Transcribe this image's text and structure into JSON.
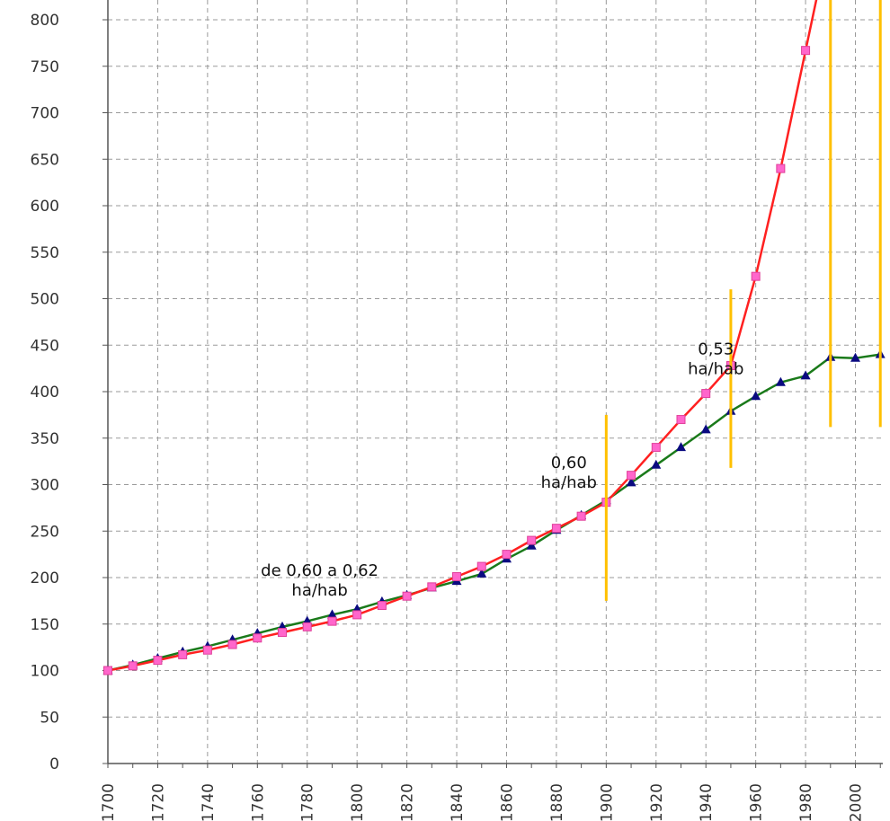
{
  "chart_data": {
    "type": "line",
    "title": "",
    "xlabel": "",
    "ylabel": "",
    "xlim": [
      1700,
      2011
    ],
    "ylim": [
      0,
      830
    ],
    "x_ticks": [
      1700,
      1720,
      1740,
      1760,
      1780,
      1800,
      1820,
      1840,
      1860,
      1880,
      1900,
      1920,
      1940,
      1960,
      1980,
      2000
    ],
    "y_ticks": [
      0,
      50,
      100,
      150,
      200,
      250,
      300,
      350,
      400,
      450,
      500,
      550,
      600,
      650,
      700,
      750,
      800
    ],
    "grid": true,
    "series": [
      {
        "color": "#ff2020",
        "marker": "square",
        "marker_color": "#ff66cc",
        "points": [
          [
            1700,
            100
          ],
          [
            1710,
            105
          ],
          [
            1720,
            111
          ],
          [
            1730,
            117
          ],
          [
            1740,
            122
          ],
          [
            1750,
            128
          ],
          [
            1760,
            135
          ],
          [
            1770,
            141
          ],
          [
            1780,
            147
          ],
          [
            1790,
            153
          ],
          [
            1800,
            160
          ],
          [
            1810,
            170
          ],
          [
            1820,
            180
          ],
          [
            1830,
            190
          ],
          [
            1840,
            201
          ],
          [
            1850,
            212
          ],
          [
            1860,
            225
          ],
          [
            1870,
            240
          ],
          [
            1880,
            253
          ],
          [
            1890,
            266
          ],
          [
            1900,
            281
          ],
          [
            1910,
            310
          ],
          [
            1920,
            340
          ],
          [
            1930,
            370
          ],
          [
            1940,
            398
          ],
          [
            1950,
            428
          ],
          [
            1960,
            524
          ],
          [
            1970,
            640
          ],
          [
            1980,
            767
          ],
          [
            1985,
            830
          ]
        ]
      },
      {
        "color": "#1a7a1a",
        "marker": "triangle",
        "marker_color": "#0a0a80",
        "points": [
          [
            1700,
            100
          ],
          [
            1710,
            106
          ],
          [
            1720,
            113
          ],
          [
            1730,
            120
          ],
          [
            1740,
            126
          ],
          [
            1750,
            133
          ],
          [
            1760,
            140
          ],
          [
            1770,
            147
          ],
          [
            1780,
            153
          ],
          [
            1790,
            160
          ],
          [
            1800,
            166
          ],
          [
            1810,
            174
          ],
          [
            1820,
            181
          ],
          [
            1830,
            189
          ],
          [
            1840,
            196
          ],
          [
            1850,
            204
          ],
          [
            1860,
            220
          ],
          [
            1870,
            234
          ],
          [
            1880,
            251
          ],
          [
            1890,
            267
          ],
          [
            1900,
            283
          ],
          [
            1910,
            302
          ],
          [
            1920,
            321
          ],
          [
            1930,
            340
          ],
          [
            1940,
            359
          ],
          [
            1950,
            379
          ],
          [
            1960,
            395
          ],
          [
            1970,
            410
          ],
          [
            1980,
            417
          ],
          [
            1990,
            437
          ],
          [
            2000,
            436
          ],
          [
            2010,
            440
          ]
        ]
      }
    ],
    "vertical_markers": [
      {
        "x": 1900,
        "y_from": 175,
        "y_to": 375,
        "color": "#ffc000"
      },
      {
        "x": 1950,
        "y_from": 318,
        "y_to": 510,
        "color": "#ffc000"
      },
      {
        "x": 1990,
        "y_from": 362,
        "y_to": 830,
        "color": "#ffc000"
      },
      {
        "x": 2010,
        "y_from": 362,
        "y_to": 830,
        "color": "#ffc000"
      }
    ],
    "annotations": [
      {
        "lines": [
          "de 0,60 a 0,62",
          "ha/hab"
        ],
        "x": 1785,
        "y": 202
      },
      {
        "lines": [
          "0,60",
          "ha/hab"
        ],
        "x": 1885,
        "y": 318
      },
      {
        "lines": [
          "0,53",
          "ha/hab"
        ],
        "x": 1944,
        "y": 440
      }
    ]
  }
}
